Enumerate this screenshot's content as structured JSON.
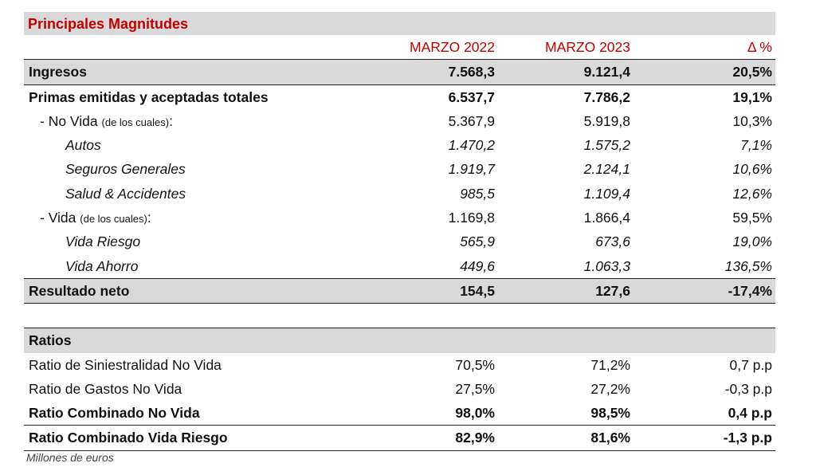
{
  "title": "Principales Magnitudes",
  "header": {
    "col1": "MARZO 2022",
    "col2": "MARZO 2023",
    "col3": "Δ %"
  },
  "rows": [
    {
      "label": "Ingresos",
      "v1": "7.568,3",
      "v2": "9.121,4",
      "v3": "20,5%",
      "style": "bold gray bt bb"
    },
    {
      "label": "Primas emitidas y aceptadas totales",
      "v1": "6.537,7",
      "v2": "7.786,2",
      "v3": "19,1%",
      "style": "bold"
    },
    {
      "label": "- No Vida",
      "note": "(de los cuales)",
      "suffix": ":",
      "v1": "5.367,9",
      "v2": "5.919,8",
      "v3": "10,3%",
      "style": "ind1"
    },
    {
      "label": "Autos",
      "v1": "1.470,2",
      "v2": "1.575,2",
      "v3": "7,1%",
      "style": "ind2 it"
    },
    {
      "label": "Seguros Generales",
      "v1": "1.919,7",
      "v2": "2.124,1",
      "v3": "10,6%",
      "style": "ind2 it"
    },
    {
      "label": "Salud & Accidentes",
      "v1": "985,5",
      "v2": "1.109,4",
      "v3": "12,6%",
      "style": "ind2 it"
    },
    {
      "label": "- Vida",
      "note": "(de los cuales)",
      "suffix": ":",
      "v1": "1.169,8",
      "v2": "1.866,4",
      "v3": "59,5%",
      "style": "ind1"
    },
    {
      "label": "Vida Riesgo",
      "v1": "565,9",
      "v2": "673,6",
      "v3": "19,0%",
      "style": "ind2 it"
    },
    {
      "label": "Vida Ahorro",
      "v1": "449,6",
      "v2": "1.063,3",
      "v3": "136,5%",
      "style": "ind2 it"
    },
    {
      "label": "Resultado neto",
      "v1": "154,5",
      "v2": "127,6",
      "v3": "-17,4%",
      "style": "bold gray bt bb"
    }
  ],
  "ratios_header": "Ratios",
  "ratios": [
    {
      "label": "Ratio de Siniestralidad No Vida",
      "v1": "70,5%",
      "v2": "71,2%",
      "v3": "0,7 p.p",
      "style": ""
    },
    {
      "label": "Ratio de Gastos No Vida",
      "v1": "27,5%",
      "v2": "27,2%",
      "v3": "-0,3 p.p",
      "style": ""
    },
    {
      "label": "Ratio Combinado No Vida",
      "v1": "98,0%",
      "v2": "98,5%",
      "v3": "0,4 p.p",
      "style": "bold bb"
    },
    {
      "label": "Ratio Combinado Vida Riesgo",
      "v1": "82,9%",
      "v2": "81,6%",
      "v3": "-1,3 p.p",
      "style": "bold bb"
    }
  ],
  "footnote": "Millones de euros"
}
